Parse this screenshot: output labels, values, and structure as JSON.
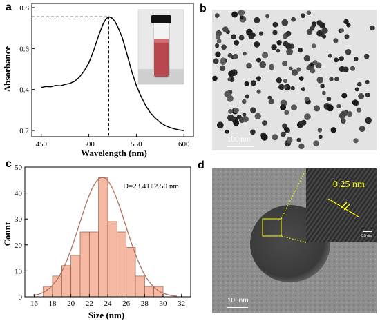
{
  "panels": {
    "a": "a",
    "b": "b",
    "c": "c",
    "d": "d"
  },
  "chart_data": [
    {
      "type": "line",
      "panel": "a",
      "xlabel": "Wavelength (nm)",
      "ylabel": "Absorbance",
      "xlim": [
        440,
        610
      ],
      "ylim": [
        0.17,
        0.82
      ],
      "xticks": [
        450,
        500,
        550,
        600
      ],
      "yticks": [
        0.2,
        0.4,
        0.6,
        0.8
      ],
      "peak": {
        "x": 521,
        "y": 0.755
      },
      "x": [
        450,
        455,
        460,
        465,
        470,
        475,
        480,
        485,
        490,
        495,
        500,
        505,
        510,
        515,
        518,
        521,
        524,
        527,
        530,
        535,
        540,
        545,
        550,
        555,
        560,
        565,
        570,
        575,
        580,
        585,
        590,
        595,
        600
      ],
      "y": [
        0.41,
        0.415,
        0.413,
        0.42,
        0.418,
        0.425,
        0.43,
        0.44,
        0.46,
        0.49,
        0.53,
        0.59,
        0.66,
        0.72,
        0.745,
        0.755,
        0.75,
        0.735,
        0.71,
        0.655,
        0.575,
        0.49,
        0.42,
        0.365,
        0.32,
        0.285,
        0.26,
        0.24,
        0.225,
        0.215,
        0.208,
        0.203,
        0.2
      ],
      "inset": "vial photo (red colloid)"
    },
    {
      "type": "bar",
      "panel": "c",
      "xlabel": "Size (nm)",
      "ylabel": "Count",
      "annotation": "D=23.41±2.50 nm",
      "xlim": [
        15,
        33
      ],
      "ylim": [
        0,
        50
      ],
      "xticks": [
        16,
        18,
        20,
        22,
        24,
        26,
        28,
        30,
        32
      ],
      "yticks": [
        0,
        10,
        20,
        30,
        40,
        50
      ],
      "bin_width": 1,
      "bin_starts": [
        17,
        18,
        19,
        20,
        21,
        22,
        23,
        24,
        25,
        26,
        27,
        28,
        29
      ],
      "values": [
        4,
        8,
        12,
        16,
        25,
        25,
        46,
        29,
        25,
        19,
        8,
        4,
        4
      ],
      "fit": {
        "type": "gaussian",
        "mean": 23.41,
        "sd": 2.5,
        "peak": 46
      }
    }
  ],
  "images": {
    "b": {
      "scale_bar": "100 nm"
    },
    "d": {
      "scale_bar": "10  nm",
      "lattice": "0.25 nm",
      "inset_scale": "0.5 nm"
    }
  },
  "colors": {
    "bar_fill": "#f5b8a2",
    "fit_line": "#b5705a",
    "annotation": "#ffff00",
    "vial_liquid": "#b8474f"
  }
}
